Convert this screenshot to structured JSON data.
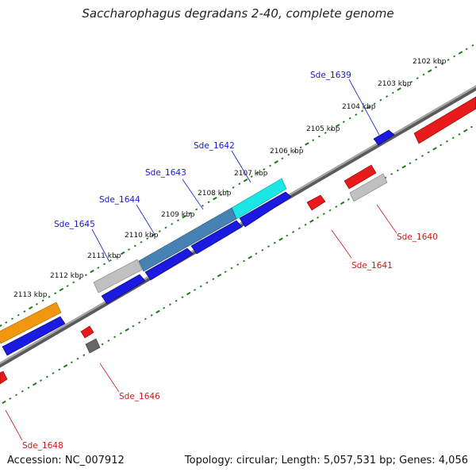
{
  "title": "Saccharophagus degradans 2-40, complete genome",
  "footer": {
    "accession": "Accession: NC_007912",
    "summary": "Topology: circular; Length: 5,057,531 bp; Genes: 4,056"
  },
  "colors": {
    "backbone": "#808080",
    "tick": "#1a7a1a",
    "forward_label": "#1a1acc",
    "reverse_label": "#cc1a1a",
    "cds_blue": "#1a1ae0",
    "cds_red": "#e81a1a",
    "rna_orange": "#f0960f",
    "highlight_cyan": "#1ae6e6",
    "highlight_steel": "#4682b4",
    "grey": "#c0c0c0",
    "dark_grey": "#666666"
  },
  "kbp_labels": [
    "2102 kbp",
    "2103 kbp",
    "2104 kbp",
    "2105 kbp",
    "2106 kbp",
    "2107 kbp",
    "2108 kbp",
    "2109 kbp",
    "2110 kbp",
    "2111 kbp",
    "2112 kbp",
    "2113 kbp"
  ],
  "gene_labels": {
    "forward": [
      "Sde_1639",
      "Sde_1642",
      "Sde_1643",
      "Sde_1644",
      "Sde_1645"
    ],
    "reverse": [
      "Sde_1640",
      "Sde_1641",
      "Sde_1646",
      "Sde_1648"
    ]
  }
}
